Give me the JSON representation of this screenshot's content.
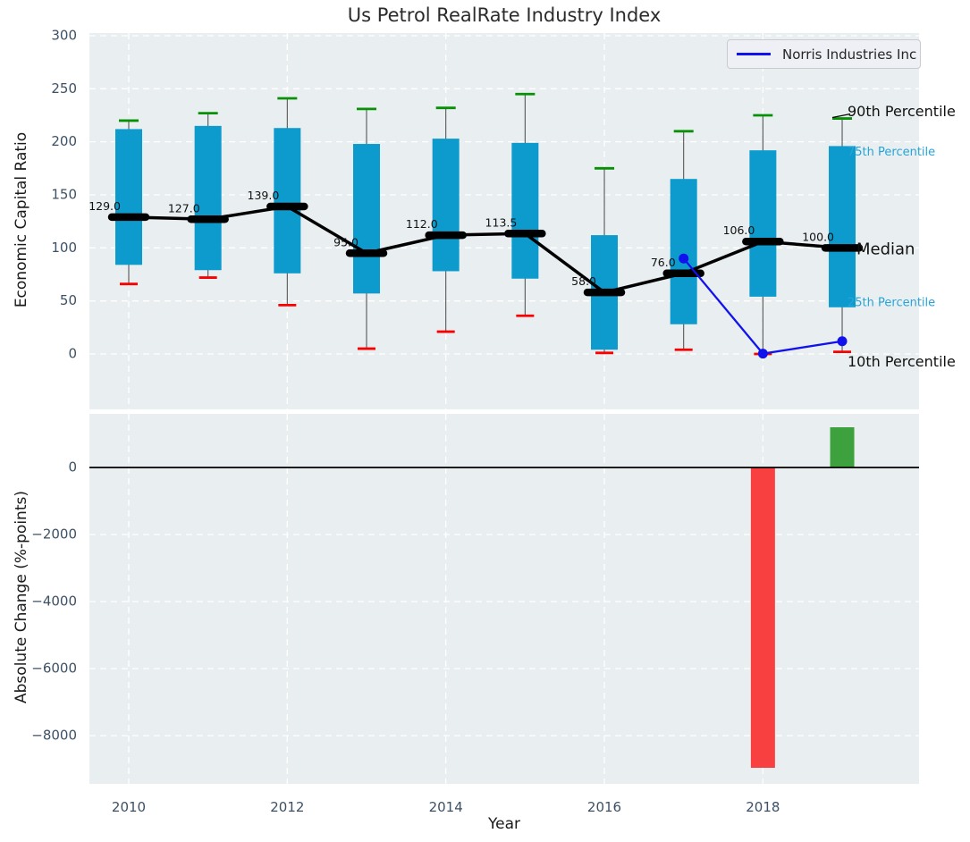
{
  "title": "Us Petrol RealRate Industry Index",
  "legend": {
    "label": "Norris Industries Inc"
  },
  "labels": {
    "top_ylabel": "Economic Capital Ratio",
    "bottom_ylabel": "Absolute Change (%-points)",
    "xlabel": "Year"
  },
  "colors": {
    "figure_bg": "#ffffff",
    "axes_bg": "#e9eef0",
    "grid": "#ffffff",
    "box_fill": "#0d9bce",
    "whisker": "#555555",
    "cap_top": "#089106",
    "cap_bottom": "#fa0000",
    "median": "#000000",
    "norris_line": "#1111ee",
    "bar_positive": "#3da23d",
    "bar_negative": "#f94040",
    "tick_label": "#3d5166",
    "text_dark": "#262626",
    "annotation_teal": "#26a4d8"
  },
  "chart_data": [
    {
      "type": "boxplot+line",
      "title": "Us Petrol RealRate Industry Index",
      "ylabel": "Economic Capital Ratio",
      "ylim": [
        -52,
        302
      ],
      "yticks": [
        0,
        50,
        100,
        150,
        200,
        250,
        300
      ],
      "ytick_labels": [
        "0",
        "50",
        "100",
        "150",
        "200",
        "250",
        "300"
      ],
      "grid": true,
      "legend_position": "upper right",
      "categories": [
        2010,
        2011,
        2012,
        2013,
        2014,
        2015,
        2016,
        2017,
        2018,
        2019
      ],
      "boxes": {
        "p90": [
          220,
          227,
          241,
          231,
          232,
          245,
          175,
          210,
          225,
          222
        ],
        "p75": [
          212,
          215,
          213,
          198,
          203,
          199,
          112,
          165,
          192,
          196
        ],
        "median": [
          129,
          127,
          139,
          95,
          112,
          113.5,
          58,
          76,
          106,
          100
        ],
        "p25": [
          84,
          79,
          76,
          57,
          78,
          71,
          4,
          28,
          54,
          44
        ],
        "p10": [
          66,
          72,
          46,
          5,
          21,
          36,
          1,
          4,
          0,
          2
        ]
      },
      "median_labels": [
        "129.0",
        "127.0",
        "139.0",
        "95.0",
        "112.0",
        "113.5",
        "58.0",
        "76.0",
        "106.0",
        "100.0"
      ],
      "series": [
        {
          "name": "Norris Industries Inc",
          "x": [
            2017,
            2018,
            2019
          ],
          "values": [
            90,
            0.3,
            12
          ]
        }
      ],
      "annotations": [
        {
          "label": "90th Percentile",
          "y": 228,
          "style": "dark",
          "size": 16
        },
        {
          "label": "75th Percentile",
          "y": 190,
          "style": "teal",
          "size": 13
        },
        {
          "label": "Median",
          "y": 98,
          "style": "dark",
          "size": 18
        },
        {
          "label": "25th Percentile",
          "y": 48,
          "style": "teal",
          "size": 13
        },
        {
          "label": "10th Percentile",
          "y": -8,
          "style": "dark",
          "size": 16
        }
      ]
    },
    {
      "type": "bar",
      "ylabel": "Absolute Change (%-points)",
      "xlabel": "Year",
      "ylim": [
        -9440,
        1600
      ],
      "yticks": [
        0,
        -2000,
        -4000,
        -6000,
        -8000
      ],
      "ytick_labels": [
        "0",
        "−2000",
        "−4000",
        "−6000",
        "−8000"
      ],
      "xticks": [
        2010,
        2012,
        2014,
        2016,
        2018
      ],
      "xtick_labels": [
        "2010",
        "2012",
        "2014",
        "2016",
        "2018"
      ],
      "grid": true,
      "bars": [
        {
          "x": 2018,
          "value": -8960,
          "color_key": "bar_negative"
        },
        {
          "x": 2019,
          "value": 1200,
          "color_key": "bar_positive"
        }
      ]
    }
  ]
}
